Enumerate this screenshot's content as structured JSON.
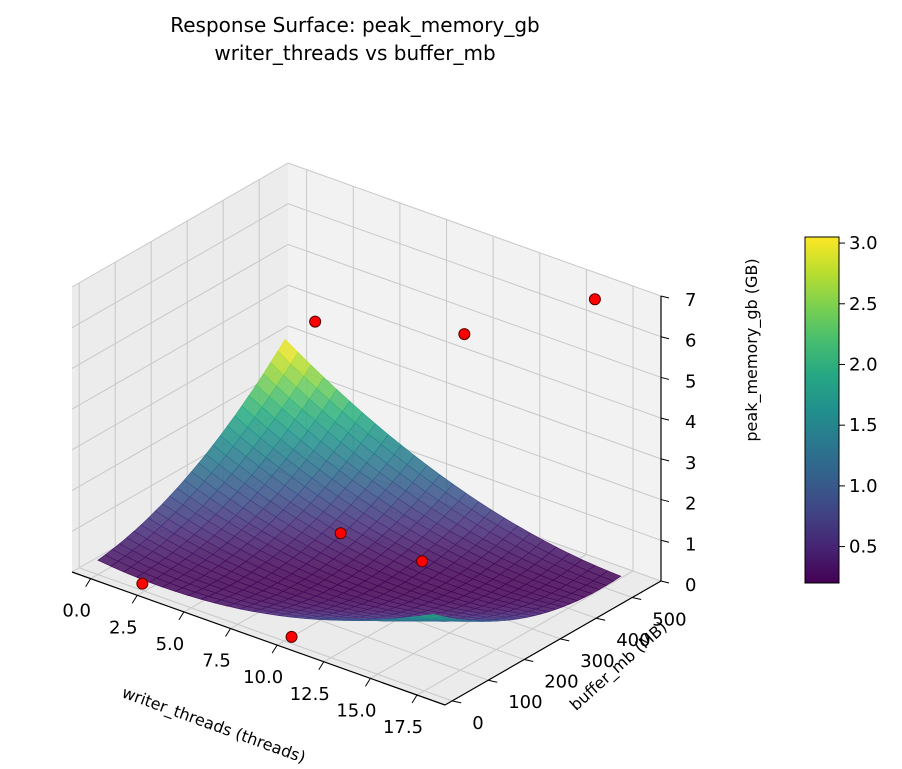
{
  "chart_data": {
    "type": "surface3d",
    "title": "Response Surface: peak_memory_gb",
    "subtitle": "writer_threads vs buffer_mb",
    "xlabel": "writer_threads (threads)",
    "ylabel": "buffer_mb (MB)",
    "zlabel": "peak_memory_gb (GB)",
    "x_ticks": [
      "0.0",
      "2.5",
      "5.0",
      "7.5",
      "10.0",
      "12.5",
      "15.0",
      "17.5"
    ],
    "y_ticks": [
      "0",
      "100",
      "200",
      "300",
      "400",
      "500"
    ],
    "z_ticks": [
      "0",
      "1",
      "2",
      "3",
      "4",
      "5",
      "6",
      "7"
    ],
    "xlim": [
      -1,
      19
    ],
    "ylim": [
      -20,
      580
    ],
    "zlim": [
      0,
      7
    ],
    "colormap": "viridis",
    "colorbar": {
      "ticks": [
        "0.5",
        "1.0",
        "1.5",
        "2.0",
        "2.5",
        "3.0"
      ],
      "range": [
        0.2,
        3.05
      ]
    },
    "surface_model": {
      "description_of_fit": "quadratic",
      "x_range": [
        0,
        18
      ],
      "y_range": [
        0,
        520
      ],
      "z_min": 0.2,
      "z_max": 3.05
    },
    "observed_points": [
      {
        "x": 2,
        "y": 20,
        "z": 0
      },
      {
        "x": 2,
        "y": 500,
        "z": 4
      },
      {
        "x": 8,
        "y": 260,
        "z": 1
      },
      {
        "x": 10,
        "y": 20,
        "z": 0
      },
      {
        "x": 10,
        "y": 500,
        "z": 5
      },
      {
        "x": 17,
        "y": 20,
        "z": 3
      },
      {
        "x": 17,
        "y": 500,
        "z": 7
      }
    ],
    "colors": {
      "points": "#ff0000",
      "point_edge": "#550000",
      "pane_floor": "#ebebeb",
      "pane_wall": "#f2f2f2",
      "grid": "#c8c8c8"
    },
    "grid": true
  }
}
